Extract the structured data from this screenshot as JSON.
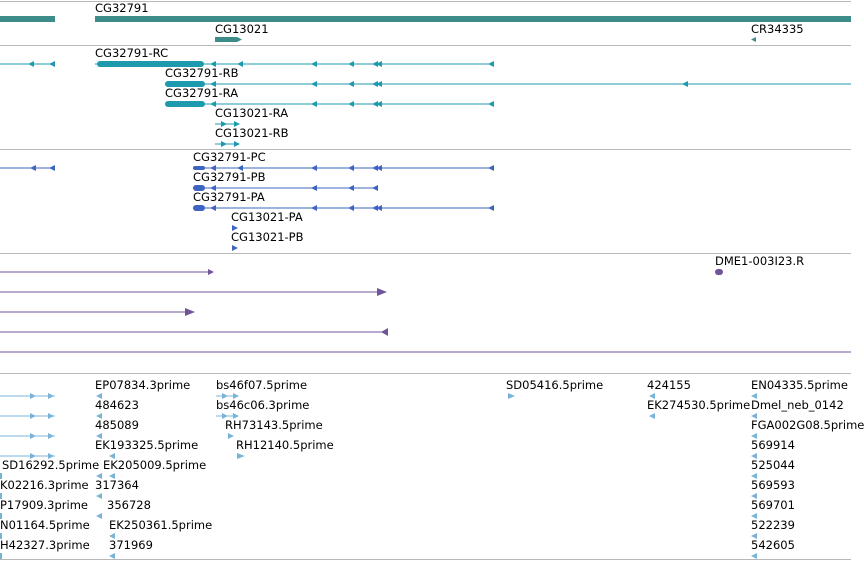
{
  "colors": {
    "gene": "#3d8c8a",
    "mrna": "#1e9aae",
    "protein": "#3c64c0",
    "cdna": "#70549a",
    "est": "#78b4d8",
    "divider": "#b8b8b8"
  },
  "tracks": {
    "genes": {
      "labels": [
        "CG32791",
        "CG13021",
        "CR34335"
      ]
    },
    "transcripts": {
      "labels": [
        "CG32791-RC",
        "CG32791-RB",
        "CG32791-RA",
        "CG13021-RA",
        "CG13021-RB"
      ]
    },
    "proteins": {
      "labels": [
        "CG32791-PC",
        "CG32791-PB",
        "CG32791-PA",
        "CG13021-PA",
        "CG13021-PB"
      ]
    },
    "cdnas": {
      "labels": [
        "DME1-003I23.R"
      ]
    },
    "ests": {
      "labels": [
        "EP07834.3prime",
        "bs46f07.5prime",
        "SD05416.5prime",
        "424155",
        "EN04335.5prime",
        "484623",
        "bs46c06.3prime",
        "EK274530.5prime",
        "Dmel_neb_0142",
        "485089",
        "RH73143.5prime",
        "FGA002G08.5prime",
        "EK193325.5prime",
        "RH12140.5prime",
        "569914",
        "SD16292.5prime",
        "EK205009.5prime",
        "525044",
        "K02216.3prime",
        "317364",
        "569593",
        "P17909.3prime",
        "356728",
        "569701",
        "N01164.5prime",
        "EK250361.5prime",
        "522239",
        "H42327.3prime",
        "371969",
        "542605"
      ]
    }
  }
}
